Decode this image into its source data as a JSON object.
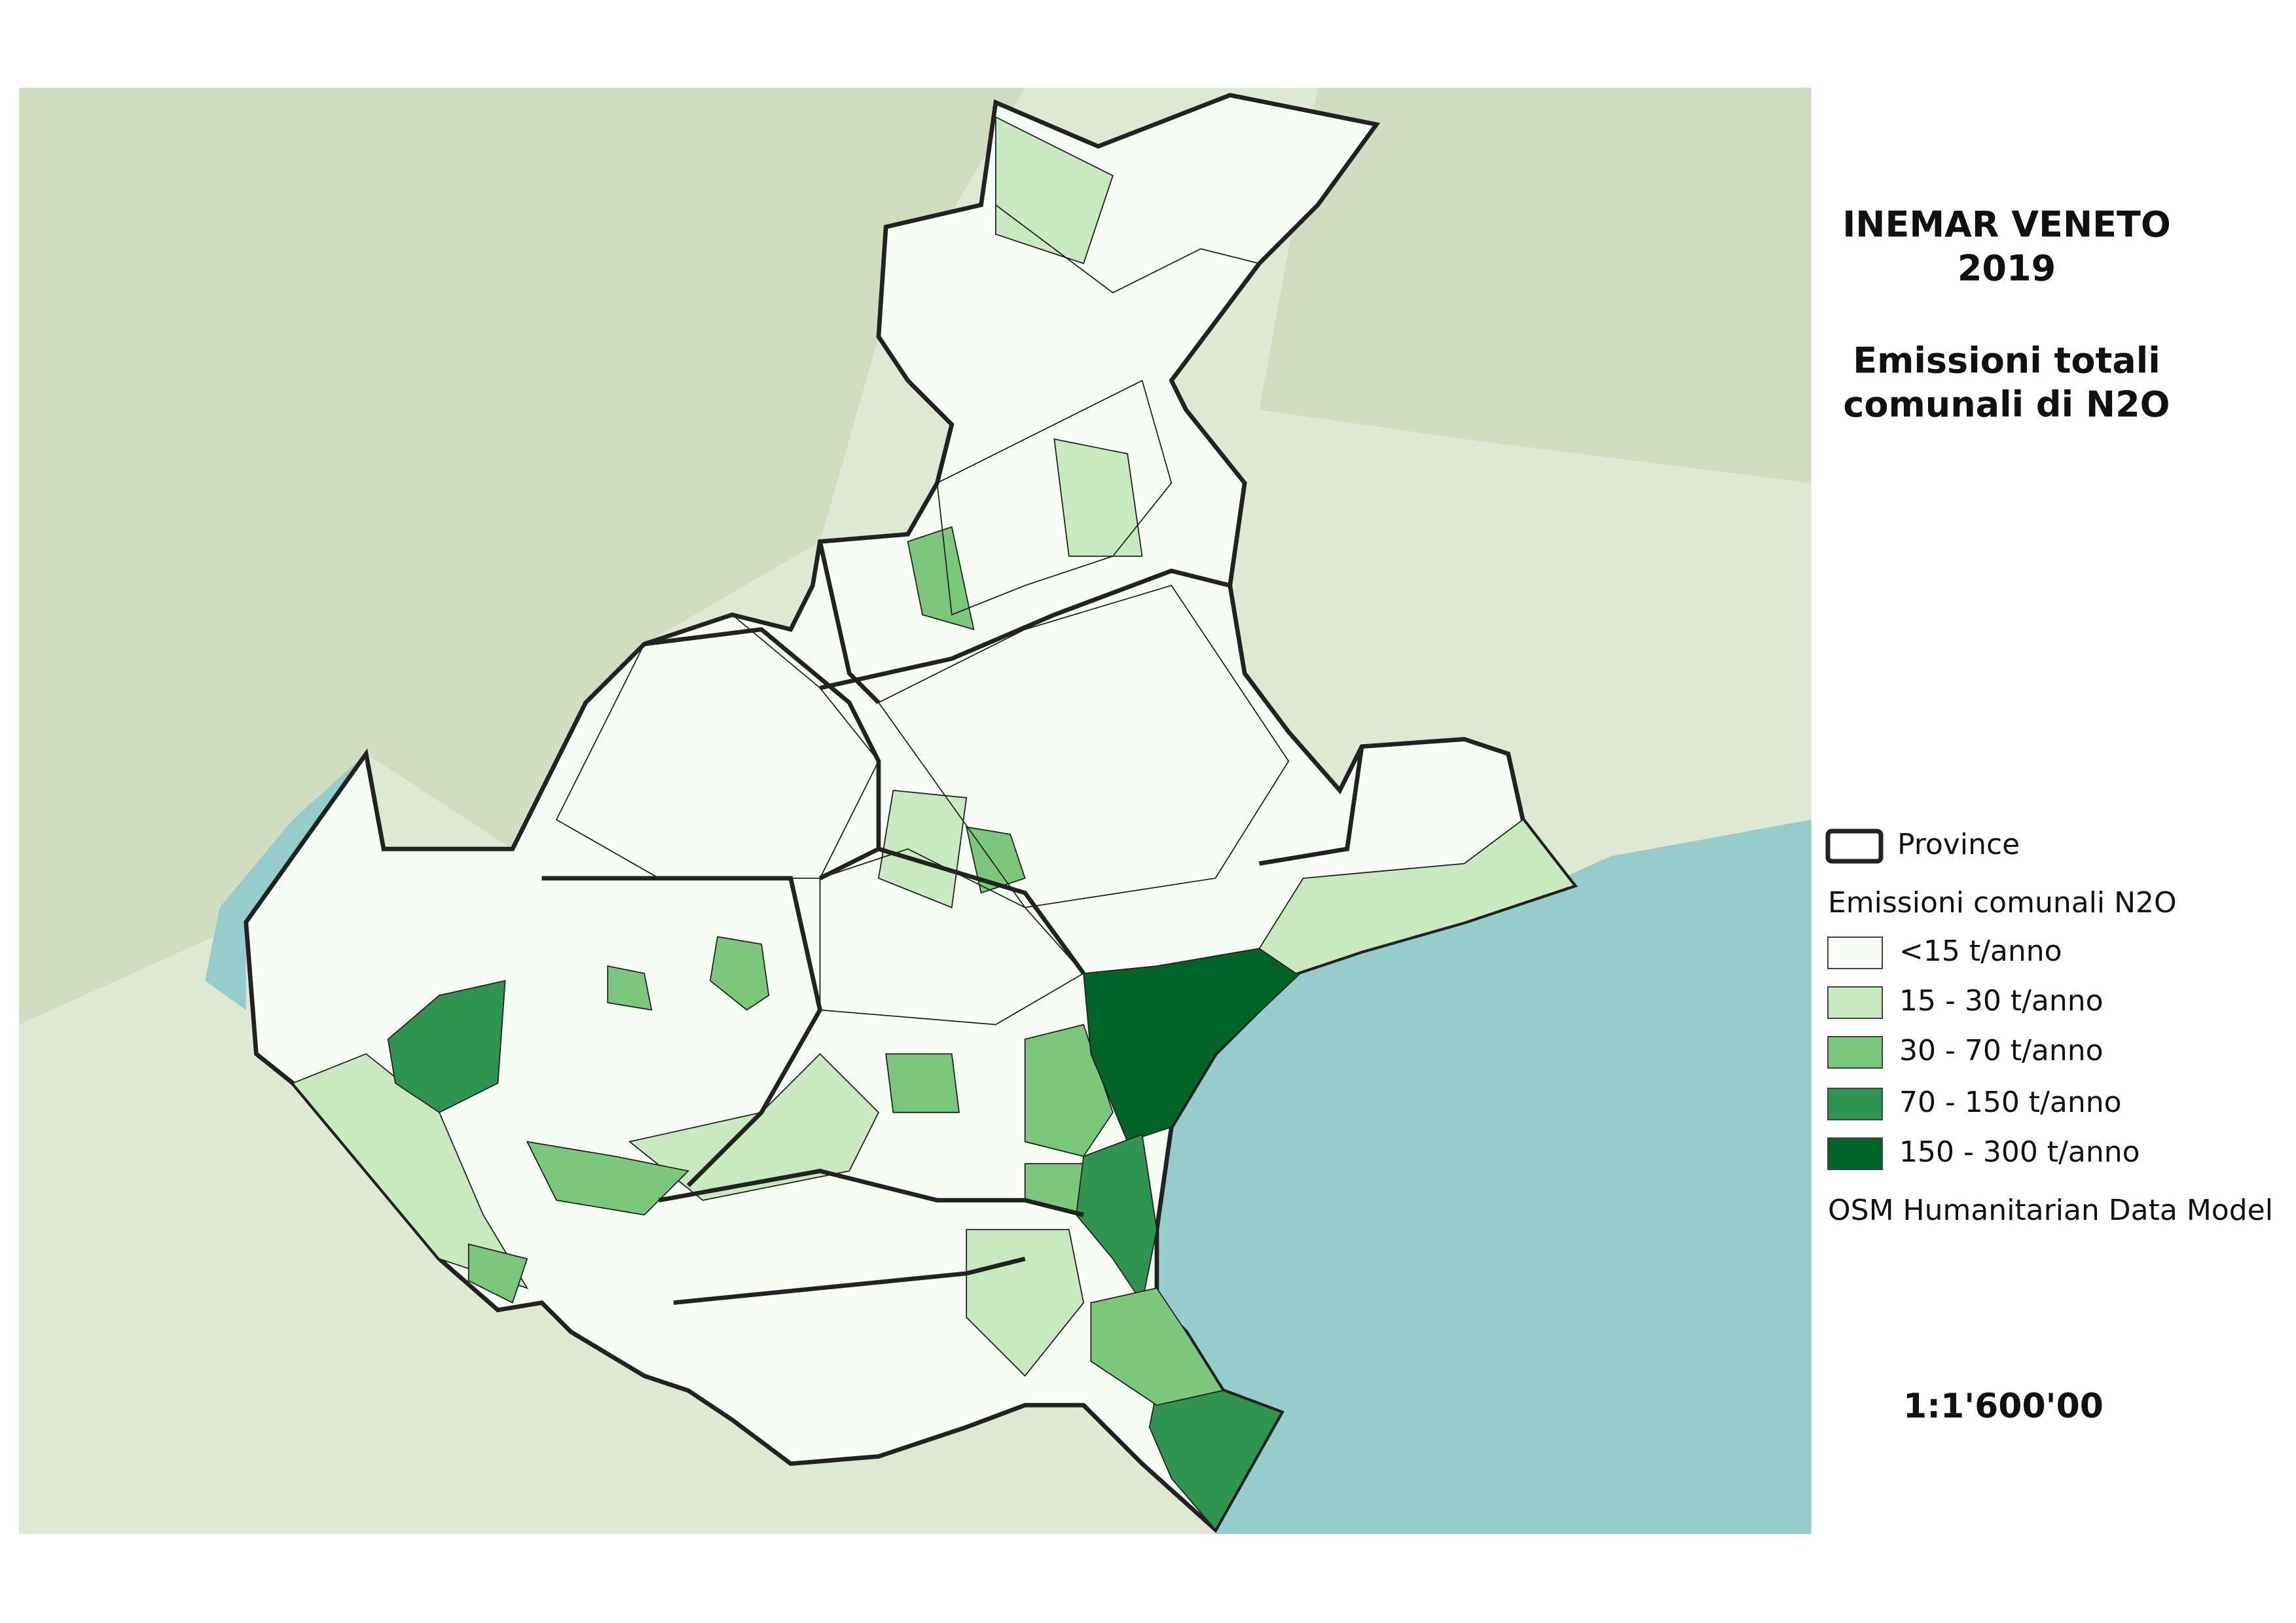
{
  "title": {
    "line1": "INEMAR VENETO",
    "line2": "2019",
    "line3": "Emissioni totali",
    "line4": "comunali di N2O"
  },
  "legend": {
    "province": "Province",
    "heading": "Emissioni comunali N2O",
    "classes": [
      {
        "label": "<15  t/anno",
        "color": "#f7fcf5"
      },
      {
        "label": "15 - 30  t/anno",
        "color": "#c9e9c0"
      },
      {
        "label": "30 - 70  t/anno",
        "color": "#7bc77c"
      },
      {
        "label": "70 - 150  t/anno",
        "color": "#2e9550"
      },
      {
        "label": "150 - 300  t/anno",
        "color": "#006428"
      }
    ],
    "basemap": "OSM Humanitarian Data Model"
  },
  "scale": "1:1'600'00"
}
